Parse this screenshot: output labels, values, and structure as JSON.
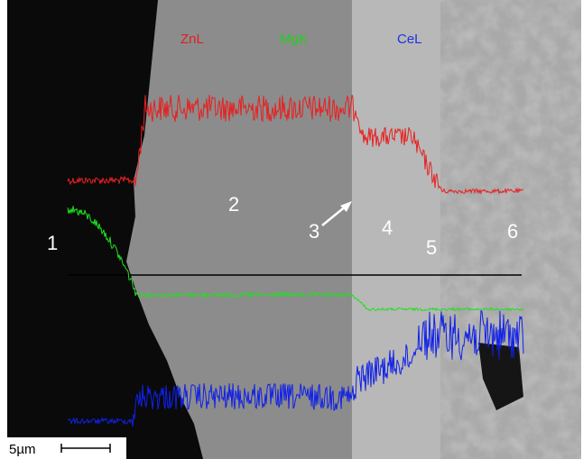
{
  "labels": {
    "zinc": "ZnL",
    "magnesium": "MgK",
    "cerium": "CeL"
  },
  "regions": [
    "1",
    "2",
    "3",
    "4",
    "5",
    "6"
  ],
  "scale_bar": "5µm"
}
